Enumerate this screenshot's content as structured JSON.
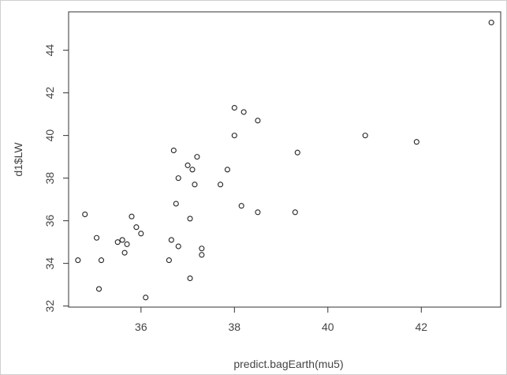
{
  "chart_data": {
    "type": "scatter",
    "title": "",
    "xlabel": "predict.bagEarth(mu5)",
    "ylabel": "d1$LW",
    "xlim": [
      34.45,
      43.7
    ],
    "ylim": [
      31.95,
      45.8
    ],
    "x_ticks": [
      36,
      38,
      40,
      42
    ],
    "y_ticks": [
      32,
      34,
      36,
      38,
      40,
      42,
      44
    ],
    "grid": false,
    "points": [
      {
        "x": 34.65,
        "y": 34.15
      },
      {
        "x": 34.8,
        "y": 36.3
      },
      {
        "x": 35.05,
        "y": 35.2
      },
      {
        "x": 35.1,
        "y": 32.8
      },
      {
        "x": 35.15,
        "y": 34.15
      },
      {
        "x": 35.5,
        "y": 35.0
      },
      {
        "x": 35.6,
        "y": 35.1
      },
      {
        "x": 35.65,
        "y": 34.5
      },
      {
        "x": 35.7,
        "y": 34.9
      },
      {
        "x": 35.8,
        "y": 36.2
      },
      {
        "x": 35.9,
        "y": 35.7
      },
      {
        "x": 36.0,
        "y": 35.4
      },
      {
        "x": 36.1,
        "y": 32.4
      },
      {
        "x": 36.6,
        "y": 34.15
      },
      {
        "x": 36.65,
        "y": 35.1
      },
      {
        "x": 36.7,
        "y": 39.3
      },
      {
        "x": 36.75,
        "y": 36.8
      },
      {
        "x": 36.8,
        "y": 34.8
      },
      {
        "x": 36.8,
        "y": 38.0
      },
      {
        "x": 37.0,
        "y": 38.6
      },
      {
        "x": 37.05,
        "y": 36.1
      },
      {
        "x": 37.05,
        "y": 33.3
      },
      {
        "x": 37.1,
        "y": 38.4
      },
      {
        "x": 37.15,
        "y": 37.7
      },
      {
        "x": 37.2,
        "y": 39.0
      },
      {
        "x": 37.3,
        "y": 34.4
      },
      {
        "x": 37.3,
        "y": 34.7
      },
      {
        "x": 37.7,
        "y": 37.7
      },
      {
        "x": 37.85,
        "y": 38.4
      },
      {
        "x": 38.0,
        "y": 40.0
      },
      {
        "x": 38.0,
        "y": 41.3
      },
      {
        "x": 38.15,
        "y": 36.7
      },
      {
        "x": 38.2,
        "y": 41.1
      },
      {
        "x": 38.5,
        "y": 40.7
      },
      {
        "x": 38.5,
        "y": 36.4
      },
      {
        "x": 39.3,
        "y": 36.4
      },
      {
        "x": 39.35,
        "y": 39.2
      },
      {
        "x": 40.8,
        "y": 40.0
      },
      {
        "x": 41.9,
        "y": 39.7
      },
      {
        "x": 43.5,
        "y": 45.3
      }
    ]
  }
}
